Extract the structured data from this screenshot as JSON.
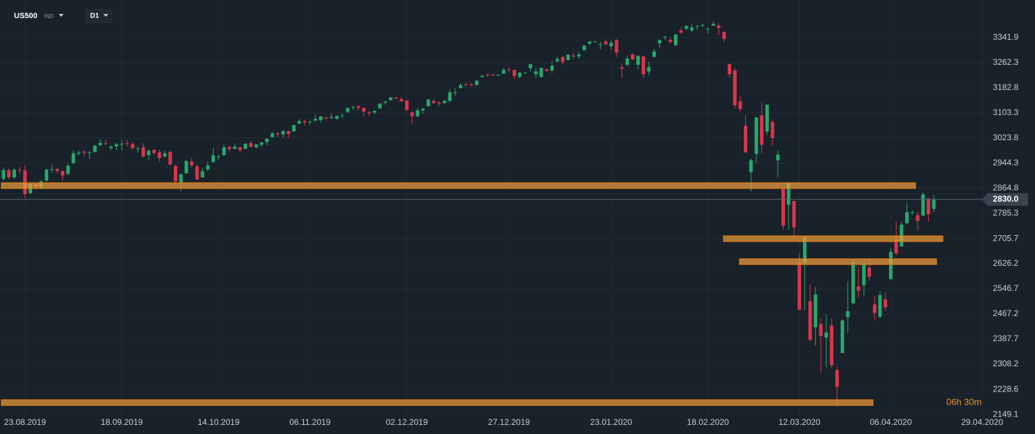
{
  "chart_data": {
    "type": "candlestick",
    "symbol": "US500",
    "market": "IND",
    "timeframe": "D1",
    "countdown": "06h 30m",
    "current_price": {
      "value": 2830,
      "label": "2830.0"
    },
    "up_color": "#26a96c",
    "down_color": "#d9364c",
    "level_color": "#f0a040",
    "grid": true,
    "ylim": [
      2142.7,
      3461.2
    ],
    "yticks": [
      3341.9,
      3262.3,
      3182.8,
      3103.3,
      3023.8,
      2944.3,
      2864.8,
      2785.3,
      2705.7,
      2626.2,
      2546.7,
      2467.2,
      2387.7,
      2308.2,
      2228.6,
      2149.1
    ],
    "levels": [
      2873.7,
      2705.7,
      2633,
      2186.9
    ],
    "categories": [
      null,
      null,
      null,
      null,
      "23.08.2019",
      null,
      null,
      null,
      null,
      null,
      null,
      null,
      null,
      null,
      null,
      null,
      null,
      null,
      null,
      null,
      null,
      null,
      "18.09.2019",
      null,
      null,
      null,
      null,
      null,
      null,
      null,
      null,
      null,
      null,
      null,
      null,
      null,
      null,
      null,
      null,
      null,
      "14.10.2019",
      null,
      null,
      null,
      null,
      null,
      null,
      null,
      null,
      null,
      null,
      null,
      null,
      null,
      null,
      null,
      null,
      "06.11.2019",
      null,
      null,
      null,
      null,
      null,
      null,
      null,
      null,
      null,
      null,
      null,
      null,
      null,
      null,
      null,
      null,
      null,
      "02.12.2019",
      null,
      null,
      null,
      null,
      null,
      null,
      null,
      null,
      null,
      null,
      null,
      null,
      null,
      null,
      null,
      null,
      null,
      null,
      "27.12.2019",
      null,
      null,
      null,
      null,
      null,
      null,
      null,
      null,
      null,
      null,
      null,
      null,
      null,
      null,
      null,
      null,
      null,
      null,
      "23.01.2020",
      null,
      null,
      null,
      null,
      null,
      null,
      null,
      null,
      null,
      null,
      null,
      null,
      null,
      null,
      null,
      null,
      null,
      "18.02.2020",
      null,
      null,
      null,
      null,
      null,
      null,
      null,
      null,
      null,
      null,
      null,
      null,
      null,
      null,
      null,
      null,
      "12.03.2020",
      null,
      null,
      null,
      null,
      null,
      null,
      null,
      null,
      null,
      null,
      null,
      null,
      null,
      null,
      null,
      null,
      "06.04.2020",
      null,
      null,
      null,
      null,
      null,
      null,
      null,
      null,
      null,
      null,
      null,
      null,
      null,
      null,
      null,
      null,
      "29.04.2020"
    ],
    "open": [
      2895,
      2923,
      2900,
      2924,
      2922,
      2850,
      2878,
      2869,
      2890,
      2924,
      2926,
      2920,
      2910,
      2945,
      2975,
      2981,
      2977,
      2980,
      3002,
      3008,
      2992,
      2998,
      3005,
      3008,
      3005,
      2989,
      2995,
      2970,
      2987,
      2979,
      2966,
      2980,
      2936,
      2882,
      2913,
      2950,
      2935,
      2900,
      2925,
      2948,
      2965,
      2970,
      2996,
      2990,
      2995,
      2990,
      3008,
      2995,
      3003,
      3012,
      3027,
      3039,
      3036,
      3046,
      3045,
      3070,
      3078,
      3075,
      3080,
      3081,
      3090,
      3088,
      3085,
      3096,
      3107,
      3120,
      3125,
      3119,
      3106,
      3105,
      3118,
      3136,
      3144,
      3153,
      3148,
      3143,
      3106,
      3093,
      3112,
      3125,
      3142,
      3136,
      3135,
      3142,
      3167,
      3183,
      3195,
      3194,
      3192,
      3217,
      3226,
      3225,
      3223,
      3228,
      3242,
      3240,
      3218,
      3231,
      3245,
      3226,
      3218,
      3242,
      3238,
      3267,
      3281,
      3271,
      3285,
      3283,
      3302,
      3323,
      3330,
      3320,
      3330,
      3315,
      3334,
      3248,
      3256,
      3289,
      3256,
      3283,
      3235,
      3281,
      3324,
      3344,
      3335,
      3318,
      3365,
      3370,
      3365,
      3378,
      3381,
      3369,
      3380,
      3380,
      3360,
      3258,
      3238,
      3140,
      3063,
      2916,
      2974,
      3096,
      3045,
      3075,
      2954,
      2863,
      2813,
      2825,
      2630,
      2630,
      2508,
      2425,
      2436,
      2393,
      2431,
      2290,
      2344,
      2457,
      2501,
      2555,
      2558,
      2614,
      2498,
      2458,
      2514,
      2578,
      2703,
      2681,
      2755,
      2790,
      2780,
      2779,
      2833,
      2800,
      null,
      null,
      null,
      null,
      null,
      null,
      null,
      null,
      null
    ],
    "high": [
      2930,
      2928,
      2929,
      2932,
      2938,
      2884,
      2882,
      2892,
      2928,
      2941,
      2930,
      2922,
      2942,
      2985,
      2986,
      2986,
      2983,
      3002,
      3021,
      3018,
      3001,
      3009,
      3018,
      3018,
      3011,
      2999,
      3008,
      2989,
      2989,
      2988,
      2984,
      2985,
      2940,
      2911,
      2953,
      2960,
      2939,
      2930,
      2950,
      2993,
      2972,
      3004,
      3000,
      3008,
      2998,
      3008,
      3015,
      3005,
      3013,
      3024,
      3044,
      3043,
      3050,
      3048,
      3066,
      3084,
      3083,
      3080,
      3098,
      3093,
      3090,
      3102,
      3096,
      3102,
      3120,
      3127,
      3128,
      3122,
      3110,
      3112,
      3134,
      3142,
      3154,
      3155,
      3153,
      3144,
      3110,
      3120,
      3120,
      3148,
      3149,
      3142,
      3145,
      3180,
      3182,
      3198,
      3198,
      3199,
      3208,
      3226,
      3228,
      3227,
      3226,
      3247,
      3248,
      3241,
      3233,
      3234,
      3258,
      3246,
      3247,
      3245,
      3268,
      3282,
      3283,
      3289,
      3295,
      3298,
      3317,
      3330,
      3332,
      3330,
      3337,
      3334,
      3338,
      3259,
      3285,
      3293,
      3286,
      3283,
      3268,
      3306,
      3337,
      3348,
      3342,
      3353,
      3375,
      3381,
      3385,
      3381,
      3385,
      3375,
      3394,
      3387,
      3360,
      3260,
      3247,
      3157,
      3097,
      2960,
      3090,
      3136,
      3130,
      3083,
      2985,
      2863,
      2882,
      2825,
      2660,
      2711,
      2562,
      2553,
      2453,
      2466,
      2453,
      2300,
      2450,
      2571,
      2637,
      2615,
      2631,
      2641,
      2522,
      2540,
      2535,
      2676,
      2761,
      2760,
      2819,
      2795,
      2790,
      2852,
      2834,
      2845,
      null,
      null,
      null,
      null,
      null,
      null,
      null,
      null,
      null
    ],
    "low": [
      2890,
      2895,
      2896,
      2912,
      2835,
      2845,
      2860,
      2862,
      2885,
      2914,
      2912,
      2890,
      2908,
      2942,
      2968,
      2967,
      2958,
      2979,
      2997,
      3002,
      2986,
      2986,
      2985,
      2997,
      2989,
      2978,
      2962,
      2955,
      2970,
      2950,
      2962,
      2938,
      2874,
      2855,
      2910,
      2932,
      2892,
      2898,
      2920,
      2948,
      2955,
      2968,
      2983,
      2988,
      2980,
      2989,
      2995,
      2991,
      2996,
      3002,
      3026,
      3026,
      3024,
      3024,
      3045,
      3068,
      3063,
      3066,
      3077,
      3073,
      3080,
      3084,
      3083,
      3087,
      3104,
      3114,
      3113,
      3092,
      3094,
      3099,
      3117,
      3130,
      3143,
      3147,
      3138,
      3110,
      3071,
      3091,
      3101,
      3124,
      3133,
      3125,
      3133,
      3138,
      3158,
      3181,
      3187,
      3189,
      3191,
      3217,
      3216,
      3220,
      3220,
      3227,
      3234,
      3212,
      3212,
      3229,
      3235,
      3215,
      3215,
      3233,
      3230,
      3262,
      3257,
      3270,
      3276,
      3275,
      3302,
      3318,
      3326,
      3305,
      3318,
      3302,
      3281,
      3215,
      3252,
      3271,
      3242,
      3214,
      3223,
      3280,
      3309,
      3334,
      3323,
      3315,
      3354,
      3366,
      3360,
      3366,
      3375,
      3354,
      3379,
      3351,
      3328,
      3214,
      3118,
      3108,
      2977,
      2855,
      2945,
      2976,
      3034,
      2999,
      2901,
      2734,
      2734,
      2707,
      2478,
      2480,
      2380,
      2367,
      2281,
      2299,
      2295,
      2174,
      2344,
      2407,
      2499,
      2520,
      2526,
      2573,
      2447,
      2455,
      2476,
      2575,
      2654,
      2680,
      2750,
      2780,
      2732,
      2778,
      2760,
      2790,
      null,
      null,
      null,
      null,
      null,
      null,
      null,
      null,
      null
    ],
    "close": [
      2923,
      2900,
      2924,
      2922,
      2847,
      2878,
      2869,
      2887,
      2924,
      2926,
      2920,
      2906,
      2937,
      2976,
      2978,
      2978,
      2979,
      3000,
      3009,
      3007,
      2997,
      3005,
      3006,
      3006,
      2992,
      2991,
      2966,
      2984,
      2977,
      2961,
      2976,
      2940,
      2887,
      2910,
      2952,
      2938,
      2893,
      2919,
      2938,
      2970,
      2966,
      2995,
      2989,
      2997,
      2986,
      3006,
      2996,
      3004,
      3010,
      3022,
      3039,
      3036,
      3046,
      3037,
      3066,
      3078,
      3074,
      3076,
      3085,
      3093,
      3087,
      3091,
      3094,
      3096,
      3120,
      3122,
      3120,
      3108,
      3103,
      3110,
      3133,
      3140,
      3153,
      3150,
      3141,
      3113,
      3093,
      3112,
      3117,
      3146,
      3135,
      3133,
      3142,
      3169,
      3169,
      3192,
      3193,
      3191,
      3206,
      3221,
      3224,
      3223,
      3224,
      3240,
      3240,
      3221,
      3231,
      3231,
      3258,
      3235,
      3246,
      3237,
      3253,
      3275,
      3265,
      3288,
      3283,
      3289,
      3317,
      3330,
      3330,
      3321,
      3321,
      3326,
      3295,
      3244,
      3276,
      3273,
      3284,
      3226,
      3249,
      3298,
      3334,
      3345,
      3328,
      3352,
      3358,
      3379,
      3374,
      3380,
      3382,
      3370,
      3386,
      3373,
      3338,
      3226,
      3128,
      3116,
      2979,
      2954,
      3090,
      3003,
      3130,
      3024,
      2972,
      2747,
      2882,
      2741,
      2481,
      2711,
      2386,
      2529,
      2398,
      2409,
      2305,
      2237,
      2447,
      2476,
      2630,
      2541,
      2627,
      2585,
      2471,
      2527,
      2489,
      2664,
      2659,
      2750,
      2790,
      2790,
      2762,
      2846,
      2783,
      2830,
      null,
      null,
      null,
      null,
      null,
      null,
      null,
      null,
      null
    ]
  }
}
